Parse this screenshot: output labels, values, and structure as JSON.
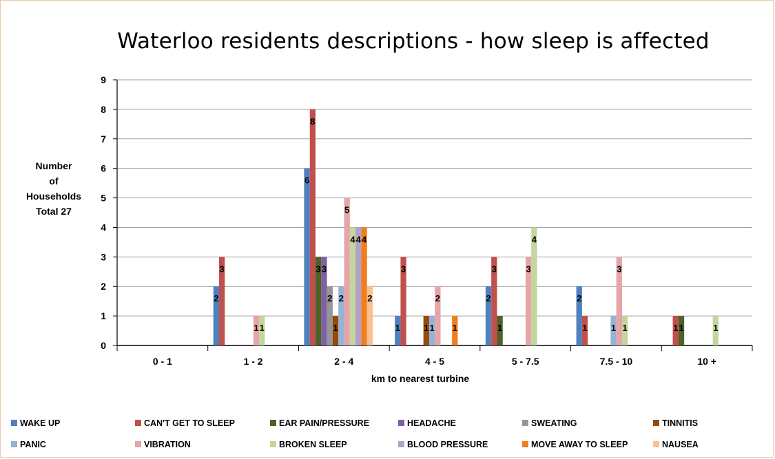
{
  "chart_data": {
    "type": "bar",
    "title": "Waterloo  residents descriptions  - how sleep is affected",
    "xlabel": "km to nearest turbine",
    "ylabel_lines": [
      "Number",
      "of",
      "Households",
      "Total 27"
    ],
    "ylim": [
      0,
      9
    ],
    "yticks": [
      "0",
      "1",
      "2",
      "3",
      "4",
      "5",
      "6",
      "7",
      "8",
      "9"
    ],
    "grid": true,
    "legend_position": "bottom",
    "categories": [
      "0 - 1",
      "1 - 2",
      "2 - 4",
      "4 - 5",
      "5  - 7.5",
      "7.5 - 10",
      "10 +"
    ],
    "series": [
      {
        "name": "WAKE UP",
        "color": "#4f81bd",
        "values": [
          0,
          2,
          6,
          1,
          2,
          2,
          0
        ]
      },
      {
        "name": "CAN'T GET TO SLEEP",
        "color": "#c0504d",
        "values": [
          0,
          3,
          8,
          3,
          3,
          1,
          1
        ]
      },
      {
        "name": "EAR PAIN/PRESSURE",
        "color": "#4f6228",
        "values": [
          0,
          0,
          3,
          0,
          1,
          0,
          1
        ]
      },
      {
        "name": "HEADACHE",
        "color": "#7f5fa6",
        "values": [
          0,
          0,
          3,
          0,
          0,
          0,
          0
        ]
      },
      {
        "name": "SWEATING",
        "color": "#969696",
        "values": [
          0,
          0,
          2,
          0,
          0,
          0,
          0
        ]
      },
      {
        "name": "TINNITIS",
        "color": "#984807",
        "values": [
          0,
          0,
          1,
          1,
          0,
          0,
          0
        ]
      },
      {
        "name": "PANIC",
        "color": "#95b3d7",
        "values": [
          0,
          0,
          2,
          1,
          0,
          1,
          0
        ]
      },
      {
        "name": "VIBRATION",
        "color": "#e6a5a8",
        "values": [
          0,
          1,
          5,
          2,
          3,
          3,
          0
        ]
      },
      {
        "name": "BROKEN SLEEP",
        "color": "#c3d69b",
        "values": [
          0,
          1,
          4,
          0,
          4,
          1,
          1
        ]
      },
      {
        "name": "BLOOD PRESSURE",
        "color": "#b3a2c7",
        "values": [
          0,
          0,
          4,
          0,
          0,
          0,
          0
        ]
      },
      {
        "name": "MOVE AWAY TO SLEEP",
        "color": "#f07d1e",
        "values": [
          0,
          0,
          4,
          1,
          0,
          0,
          0
        ]
      },
      {
        "name": "NAUSEA",
        "color": "#fac090",
        "values": [
          0,
          0,
          2,
          0,
          0,
          0,
          0
        ]
      }
    ]
  }
}
